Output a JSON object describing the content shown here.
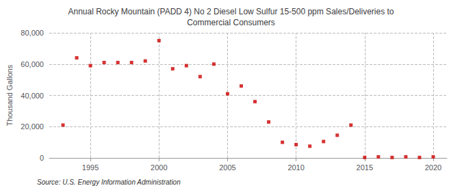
{
  "chart_data": {
    "type": "scatter",
    "title": "Annual Rocky Mountain (PADD 4) No 2 Diesel Low Sulfur 15-500 ppm Sales/Deliveries to\nCommercial Consumers",
    "ylabel": "Thousand Gallons",
    "annotations": [
      "Source: U.S. Energy Information Administration"
    ],
    "x": [
      1993,
      1994,
      1995,
      1996,
      1997,
      1998,
      1999,
      2000,
      2001,
      2002,
      2003,
      2004,
      2005,
      2006,
      2007,
      2008,
      2009,
      2010,
      2011,
      2012,
      2013,
      2014,
      2015,
      2016,
      2017,
      2018,
      2019,
      2020
    ],
    "values": [
      21000,
      64000,
      59000,
      61000,
      61000,
      61000,
      62000,
      75000,
      57000,
      59000,
      52000,
      60000,
      41000,
      46000,
      36000,
      23000,
      10000,
      8500,
      7500,
      10500,
      14500,
      21000,
      300,
      700,
      300,
      700,
      300,
      700
    ],
    "color": "#cc0000",
    "marker": "square",
    "xlim": [
      1992,
      2021
    ],
    "xticks": [
      1995,
      2000,
      2005,
      2010,
      2015,
      2020
    ],
    "ylim": [
      0,
      80000
    ],
    "yticks": [
      0,
      {
        "value": 20000,
        "label": "20,000"
      },
      {
        "value": 40000,
        "label": "40,000"
      },
      {
        "value": 60000,
        "label": "60,000"
      },
      {
        "value": 80000,
        "label": "80,000"
      }
    ],
    "grid": true
  }
}
